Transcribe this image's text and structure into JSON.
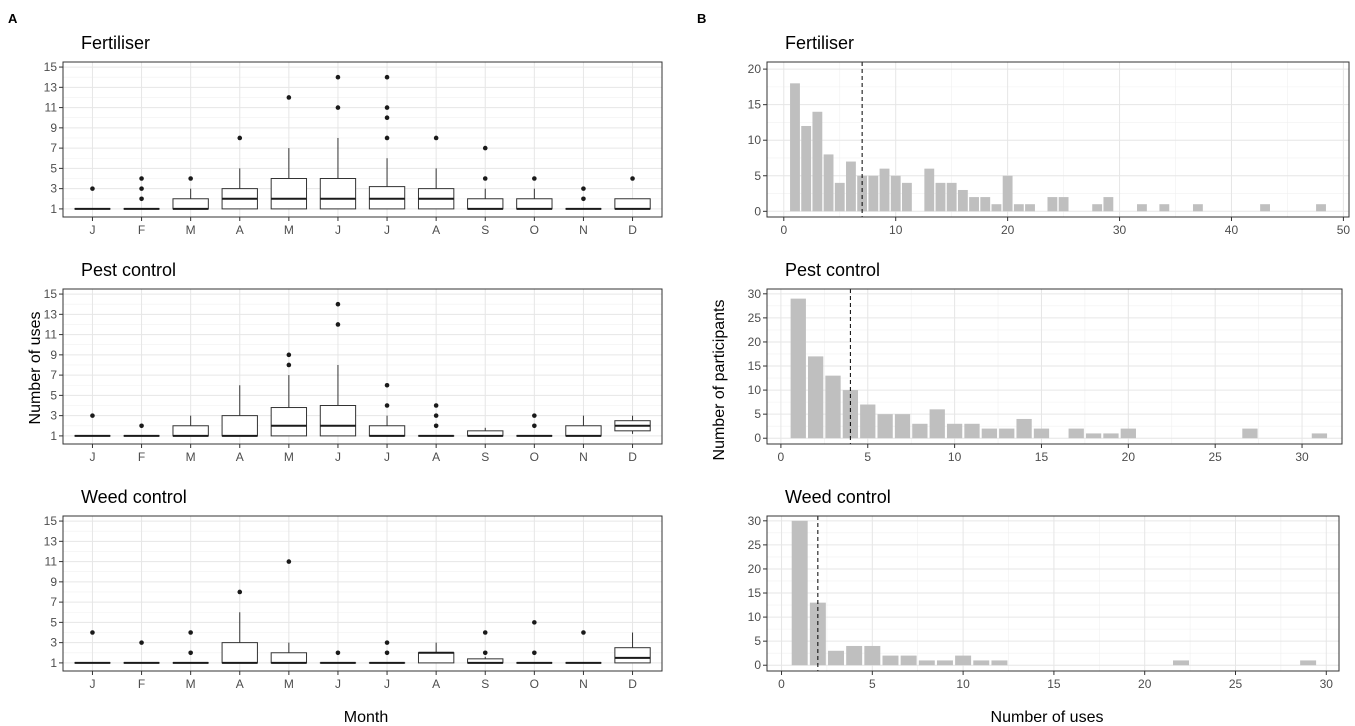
{
  "figure": {
    "panel_A_label": "A",
    "panel_B_label": "B",
    "A_xlabel": "Month",
    "A_ylabel": "Number of uses",
    "B_xlabel": "Number of uses",
    "B_ylabel": "Number of participants"
  },
  "chart_data": [
    {
      "type": "boxplot",
      "panel": "A",
      "title": "Fertiliser",
      "xlabel": "",
      "ylabel": "",
      "categories": [
        "J",
        "F",
        "M",
        "A",
        "M",
        "J",
        "J",
        "A",
        "S",
        "O",
        "N",
        "D"
      ],
      "ylim": [
        0.2,
        15.5
      ],
      "yticks": [
        1,
        3,
        5,
        7,
        9,
        11,
        13,
        15
      ],
      "grid": true,
      "boxes": [
        {
          "min": 1,
          "q1": 1,
          "median": 1,
          "q3": 1,
          "max": 1,
          "outliers": [
            3
          ]
        },
        {
          "min": 1,
          "q1": 1,
          "median": 1,
          "q3": 1,
          "max": 1,
          "outliers": [
            2,
            3,
            4
          ]
        },
        {
          "min": 1,
          "q1": 1,
          "median": 1,
          "q3": 2,
          "max": 3,
          "outliers": [
            4
          ]
        },
        {
          "min": 1,
          "q1": 1,
          "median": 2,
          "q3": 3,
          "max": 5,
          "outliers": [
            8
          ]
        },
        {
          "min": 1,
          "q1": 1,
          "median": 2,
          "q3": 4,
          "max": 7,
          "outliers": [
            12
          ]
        },
        {
          "min": 1,
          "q1": 1,
          "median": 2,
          "q3": 4,
          "max": 8,
          "outliers": [
            11,
            14
          ]
        },
        {
          "min": 1,
          "q1": 1,
          "median": 2,
          "q3": 3.2,
          "max": 6,
          "outliers": [
            8,
            10,
            11,
            14
          ]
        },
        {
          "min": 1,
          "q1": 1,
          "median": 2,
          "q3": 3,
          "max": 5,
          "outliers": [
            8
          ]
        },
        {
          "min": 1,
          "q1": 1,
          "median": 1,
          "q3": 2,
          "max": 3,
          "outliers": [
            4,
            7
          ]
        },
        {
          "min": 1,
          "q1": 1,
          "median": 1,
          "q3": 2,
          "max": 3,
          "outliers": [
            4
          ]
        },
        {
          "min": 1,
          "q1": 1,
          "median": 1,
          "q3": 1,
          "max": 1,
          "outliers": [
            2,
            3
          ]
        },
        {
          "min": 1,
          "q1": 1,
          "median": 1,
          "q3": 2,
          "max": 2,
          "outliers": [
            4
          ]
        }
      ]
    },
    {
      "type": "boxplot",
      "panel": "A",
      "title": "Pest control",
      "xlabel": "",
      "ylabel": "",
      "categories": [
        "J",
        "F",
        "M",
        "A",
        "M",
        "J",
        "J",
        "A",
        "S",
        "O",
        "N",
        "D"
      ],
      "ylim": [
        0.2,
        15.5
      ],
      "yticks": [
        1,
        3,
        5,
        7,
        9,
        11,
        13,
        15
      ],
      "grid": true,
      "boxes": [
        {
          "min": 1,
          "q1": 1,
          "median": 1,
          "q3": 1,
          "max": 1,
          "outliers": [
            3
          ]
        },
        {
          "min": 1,
          "q1": 1,
          "median": 1,
          "q3": 1,
          "max": 1,
          "outliers": [
            2
          ]
        },
        {
          "min": 1,
          "q1": 1,
          "median": 1,
          "q3": 2,
          "max": 3,
          "outliers": []
        },
        {
          "min": 1,
          "q1": 1,
          "median": 1,
          "q3": 3,
          "max": 6,
          "outliers": []
        },
        {
          "min": 1,
          "q1": 1,
          "median": 2,
          "q3": 3.8,
          "max": 7,
          "outliers": [
            8,
            9
          ]
        },
        {
          "min": 1,
          "q1": 1,
          "median": 2,
          "q3": 4,
          "max": 8,
          "outliers": [
            12,
            14
          ]
        },
        {
          "min": 1,
          "q1": 1,
          "median": 1,
          "q3": 2,
          "max": 3,
          "outliers": [
            4,
            6
          ]
        },
        {
          "min": 1,
          "q1": 1,
          "median": 1,
          "q3": 1,
          "max": 1,
          "outliers": [
            2,
            3,
            4
          ]
        },
        {
          "min": 1,
          "q1": 1,
          "median": 1,
          "q3": 1.5,
          "max": 1.8,
          "outliers": []
        },
        {
          "min": 1,
          "q1": 1,
          "median": 1,
          "q3": 1,
          "max": 1,
          "outliers": [
            2,
            3
          ]
        },
        {
          "min": 1,
          "q1": 1,
          "median": 1,
          "q3": 2,
          "max": 3,
          "outliers": []
        },
        {
          "min": 1.2,
          "q1": 1.5,
          "median": 2,
          "q3": 2.5,
          "max": 3,
          "outliers": []
        }
      ]
    },
    {
      "type": "boxplot",
      "panel": "A",
      "title": "Weed control",
      "xlabel": "Month",
      "ylabel": "",
      "categories": [
        "J",
        "F",
        "M",
        "A",
        "M",
        "J",
        "J",
        "A",
        "S",
        "O",
        "N",
        "D"
      ],
      "ylim": [
        0.2,
        15.5
      ],
      "yticks": [
        1,
        3,
        5,
        7,
        9,
        11,
        13,
        15
      ],
      "grid": true,
      "boxes": [
        {
          "min": 1,
          "q1": 1,
          "median": 1,
          "q3": 1,
          "max": 1,
          "outliers": [
            4
          ]
        },
        {
          "min": 1,
          "q1": 1,
          "median": 1,
          "q3": 1,
          "max": 1,
          "outliers": [
            3
          ]
        },
        {
          "min": 1,
          "q1": 1,
          "median": 1,
          "q3": 1,
          "max": 1,
          "outliers": [
            2,
            4
          ]
        },
        {
          "min": 1,
          "q1": 1,
          "median": 1,
          "q3": 3,
          "max": 6,
          "outliers": [
            8
          ]
        },
        {
          "min": 1,
          "q1": 1,
          "median": 1,
          "q3": 2,
          "max": 3,
          "outliers": [
            11
          ]
        },
        {
          "min": 1,
          "q1": 1,
          "median": 1,
          "q3": 1,
          "max": 1,
          "outliers": [
            2
          ]
        },
        {
          "min": 1,
          "q1": 1,
          "median": 1,
          "q3": 1,
          "max": 1,
          "outliers": [
            2,
            3
          ]
        },
        {
          "min": 1,
          "q1": 1,
          "median": 2,
          "q3": 2,
          "max": 3,
          "outliers": []
        },
        {
          "min": 1,
          "q1": 1,
          "median": 1,
          "q3": 1.4,
          "max": 1.6,
          "outliers": [
            2,
            4
          ]
        },
        {
          "min": 1,
          "q1": 1,
          "median": 1,
          "q3": 1,
          "max": 1,
          "outliers": [
            2,
            5
          ]
        },
        {
          "min": 1,
          "q1": 1,
          "median": 1,
          "q3": 1,
          "max": 1,
          "outliers": [
            4
          ]
        },
        {
          "min": 1,
          "q1": 1,
          "median": 1.5,
          "q3": 2.5,
          "max": 4,
          "outliers": []
        }
      ]
    },
    {
      "type": "bar",
      "panel": "B",
      "title": "Fertiliser",
      "xlabel": "",
      "ylabel": "",
      "xlim": [
        -1.5,
        50.5
      ],
      "ylim": [
        -0.8,
        21
      ],
      "xticks": [
        0,
        10,
        20,
        30,
        40,
        50
      ],
      "yticks": [
        0,
        5,
        10,
        15,
        20
      ],
      "bar_color": "#bfbfbf",
      "median_line": 7,
      "x": [
        1,
        2,
        3,
        4,
        5,
        6,
        7,
        8,
        9,
        10,
        11,
        13,
        14,
        15,
        16,
        17,
        18,
        19,
        20,
        21,
        22,
        24,
        25,
        28,
        29,
        32,
        34,
        37,
        43,
        48
      ],
      "values": [
        18,
        12,
        14,
        8,
        4,
        7,
        5,
        5,
        6,
        5,
        4,
        6,
        4,
        4,
        3,
        2,
        2,
        1,
        5,
        1,
        1,
        2,
        2,
        1,
        2,
        1,
        1,
        1,
        1,
        1
      ]
    },
    {
      "type": "bar",
      "panel": "B",
      "title": "Pest control",
      "xlabel": "",
      "ylabel": "Number of participants",
      "xlim": [
        -0.8,
        32.3
      ],
      "ylim": [
        -1.2,
        31
      ],
      "xticks": [
        0,
        5,
        10,
        15,
        20,
        25,
        30
      ],
      "yticks": [
        0,
        5,
        10,
        15,
        20,
        25,
        30
      ],
      "bar_color": "#bfbfbf",
      "median_line": 4,
      "x": [
        1,
        2,
        3,
        4,
        5,
        6,
        7,
        8,
        9,
        10,
        11,
        12,
        13,
        14,
        15,
        16,
        17,
        18,
        19,
        20,
        27,
        31
      ],
      "values": [
        29,
        17,
        13,
        10,
        7,
        5,
        5,
        3,
        6,
        3,
        3,
        2,
        2,
        4,
        2,
        0,
        2,
        1,
        1,
        2,
        2,
        1
      ]
    },
    {
      "type": "bar",
      "panel": "B",
      "title": "Weed control",
      "xlabel": "Number of uses",
      "ylabel": "",
      "xlim": [
        -0.8,
        30.7
      ],
      "ylim": [
        -1.2,
        31
      ],
      "xticks": [
        0,
        5,
        10,
        15,
        20,
        25,
        30
      ],
      "yticks": [
        0,
        5,
        10,
        15,
        20,
        25,
        30
      ],
      "bar_color": "#bfbfbf",
      "median_line": 2,
      "x": [
        1,
        2,
        3,
        4,
        5,
        6,
        7,
        8,
        9,
        10,
        11,
        12,
        22,
        29
      ],
      "values": [
        30,
        13,
        3,
        4,
        4,
        2,
        2,
        1,
        1,
        2,
        1,
        1,
        1,
        1
      ]
    }
  ]
}
